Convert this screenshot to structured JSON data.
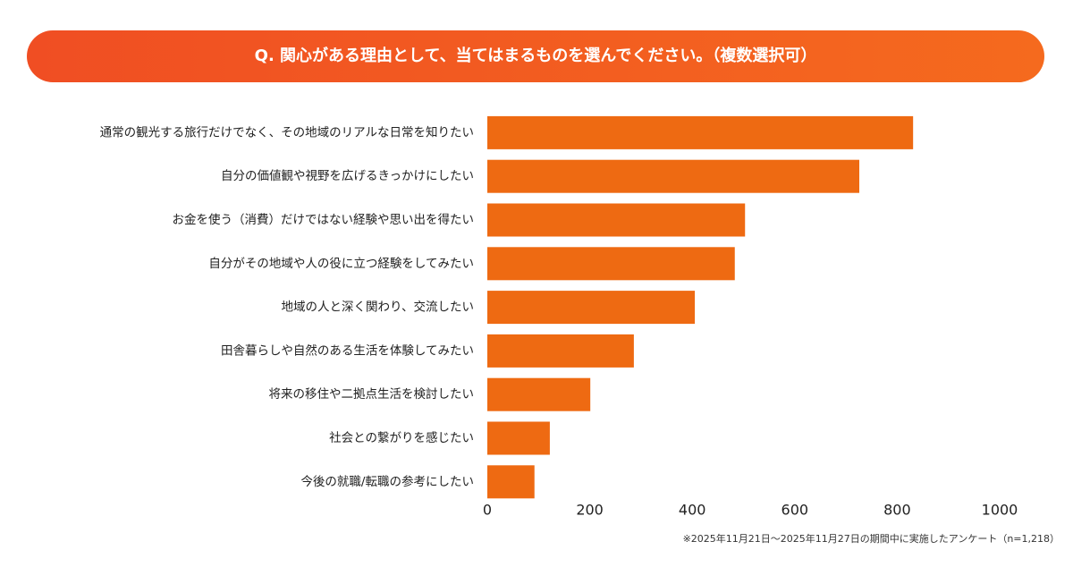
{
  "chart_data": {
    "type": "bar",
    "orientation": "horizontal",
    "title": "Q. 関心がある理由として、当てはまるものを選んでください。（複数選択可）",
    "categories": [
      "通常の観光する旅行だけでなく、その地域のリアルな日常を知りたい",
      "自分の価値観や視野を広げるきっかけにしたい",
      "お金を使う（消費）だけではない経験や思い出を得たい",
      "自分がその地域や人の役に立つ経験をしてみたい",
      "地域の人と深く関わり、交流したい",
      "田舎暮らしや自然のある生活を体験してみたい",
      "将来の移住や二拠点生活を検討したい",
      "社会との繋がりを感じたい",
      "今後の就職/転職の参考にしたい"
    ],
    "values": [
      831,
      726,
      503,
      483,
      405,
      286,
      201,
      122,
      92
    ],
    "color": "#ee6a12",
    "xlim": [
      0,
      1000
    ],
    "xticks": [
      0,
      200,
      400,
      600,
      800,
      1000
    ],
    "note": "※2025年11月21日～2025年11月27日の期間中に実施したアンケート（n=1,218）"
  }
}
